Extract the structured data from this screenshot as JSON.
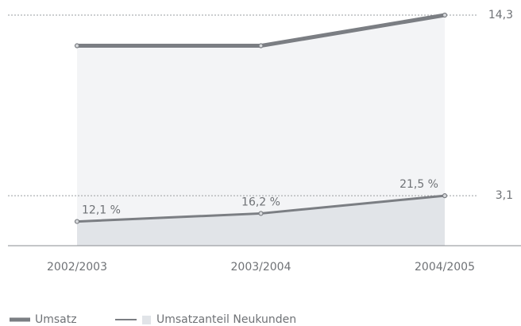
{
  "chart_data": {
    "type": "line",
    "categories": [
      "2002/2003",
      "2003/2004",
      "2004/2005"
    ],
    "series": [
      {
        "name": "Umsatz",
        "color": "#7b7e83",
        "area_color": "#f3f4f6",
        "values": [
          12.4,
          12.4,
          14.3
        ]
      },
      {
        "name": "Umsatzanteil Neukunden",
        "color": "#7b7e83",
        "area_color": "#e1e4e8",
        "values": [
          1.5,
          2.0,
          3.1
        ]
      }
    ],
    "annotations": [
      "12,1 %",
      "16,2 %",
      "21,5 %"
    ],
    "reference_lines": [
      {
        "value": 14.3,
        "label": "14,3"
      },
      {
        "value": 3.1,
        "label": "3,1"
      }
    ],
    "ylim": [
      0,
      14.3
    ]
  }
}
